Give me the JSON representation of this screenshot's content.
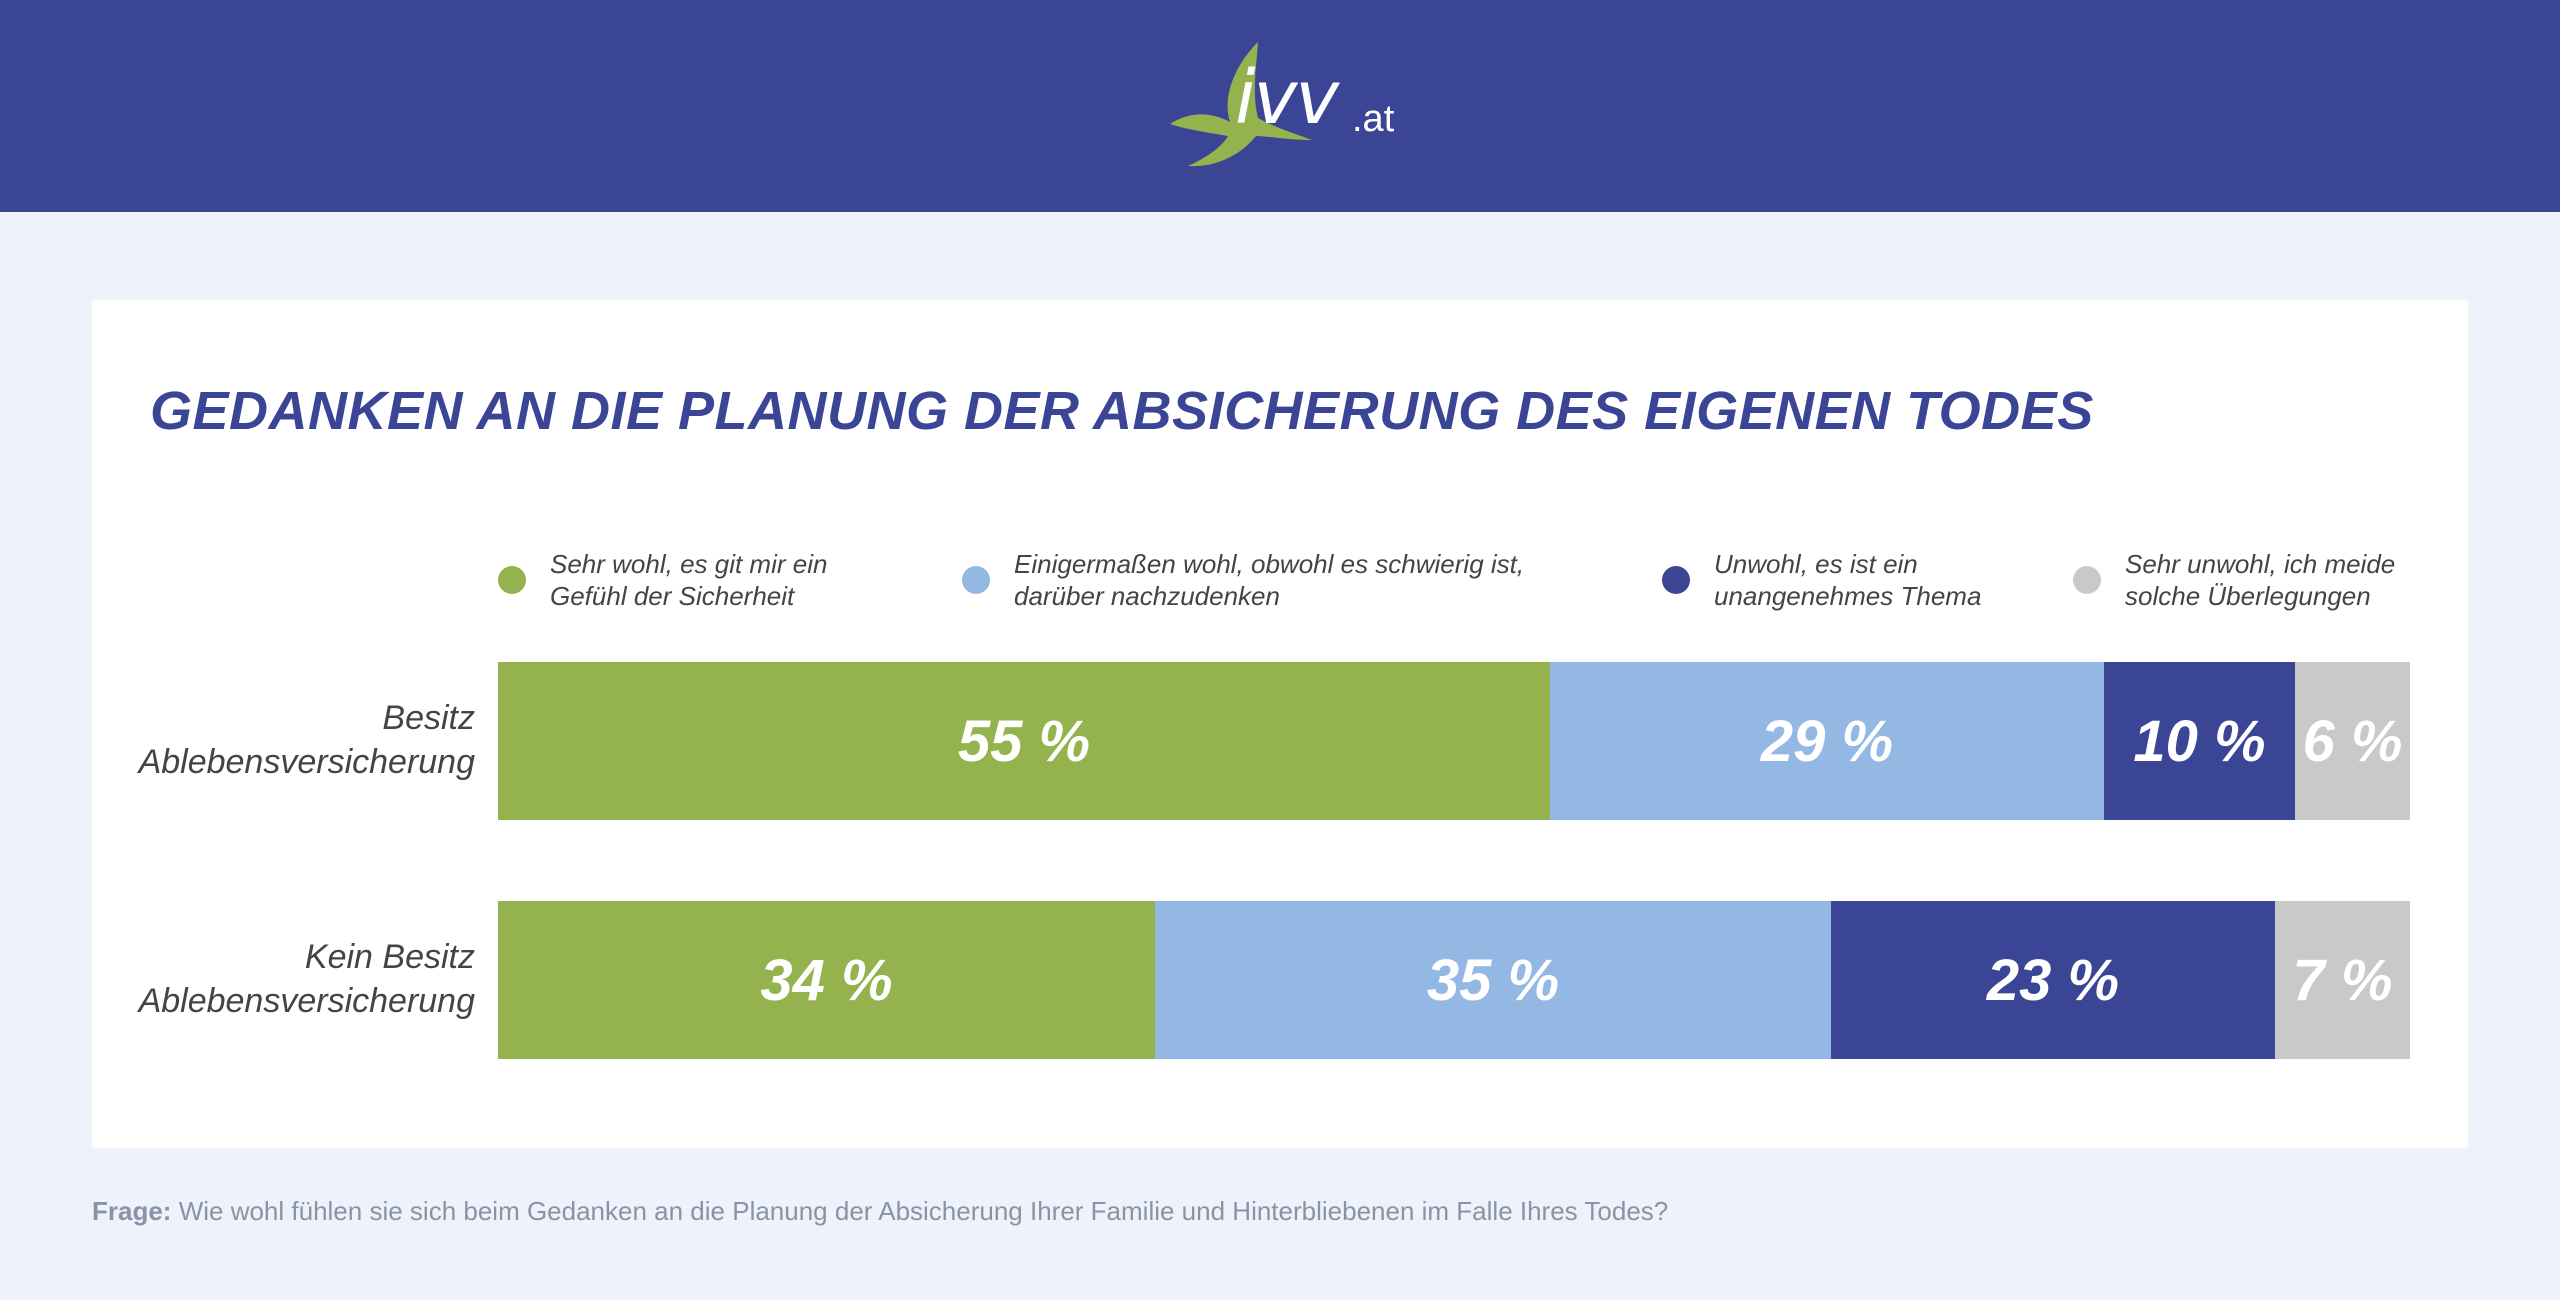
{
  "logo": {
    "text": "ivv",
    "suffix": ".at"
  },
  "colors": {
    "sehr_wohl": "#94b34e",
    "einigermassen": "#94b8e4",
    "unwohl": "#3b4596",
    "sehr_unwohl": "#c9c9c9",
    "header": "#3b4596"
  },
  "chart_data": {
    "type": "bar",
    "orientation": "horizontal-stacked-100",
    "title": "GEDANKEN AN DIE PLANUNG DER ABSICHERUNG DES EIGENEN TODES",
    "categories": [
      "Besitz\nAblebensversicherung",
      "Kein Besitz\nAblebensversicherung"
    ],
    "unit": "%",
    "series": [
      {
        "name": "Sehr wohl, es git mir ein\nGefühl der Sicherheit",
        "values": [
          55,
          34
        ],
        "labels": [
          "55 %",
          "34 %"
        ]
      },
      {
        "name": "Einigermaßen wohl, obwohl es schwierig ist,\ndarüber nachzudenken",
        "values": [
          29,
          35
        ],
        "labels": [
          "29 %",
          "35 %"
        ]
      },
      {
        "name": "Unwohl, es ist ein\nunangenehmes Thema",
        "values": [
          10,
          23
        ],
        "labels": [
          "10 %",
          "23 %"
        ]
      },
      {
        "name": "Sehr unwohl, ich meide\nsolche Überlegungen",
        "values": [
          6,
          7
        ],
        "labels": [
          "6 %",
          "7 %"
        ]
      }
    ],
    "legend_position": "top"
  },
  "footnote": {
    "label": "Frage:",
    "text": " Wie wohl fühlen sie sich beim Gedanken an die Planung der Absicherung Ihrer Familie und Hinterbliebenen im Falle Ihres Todes?"
  }
}
